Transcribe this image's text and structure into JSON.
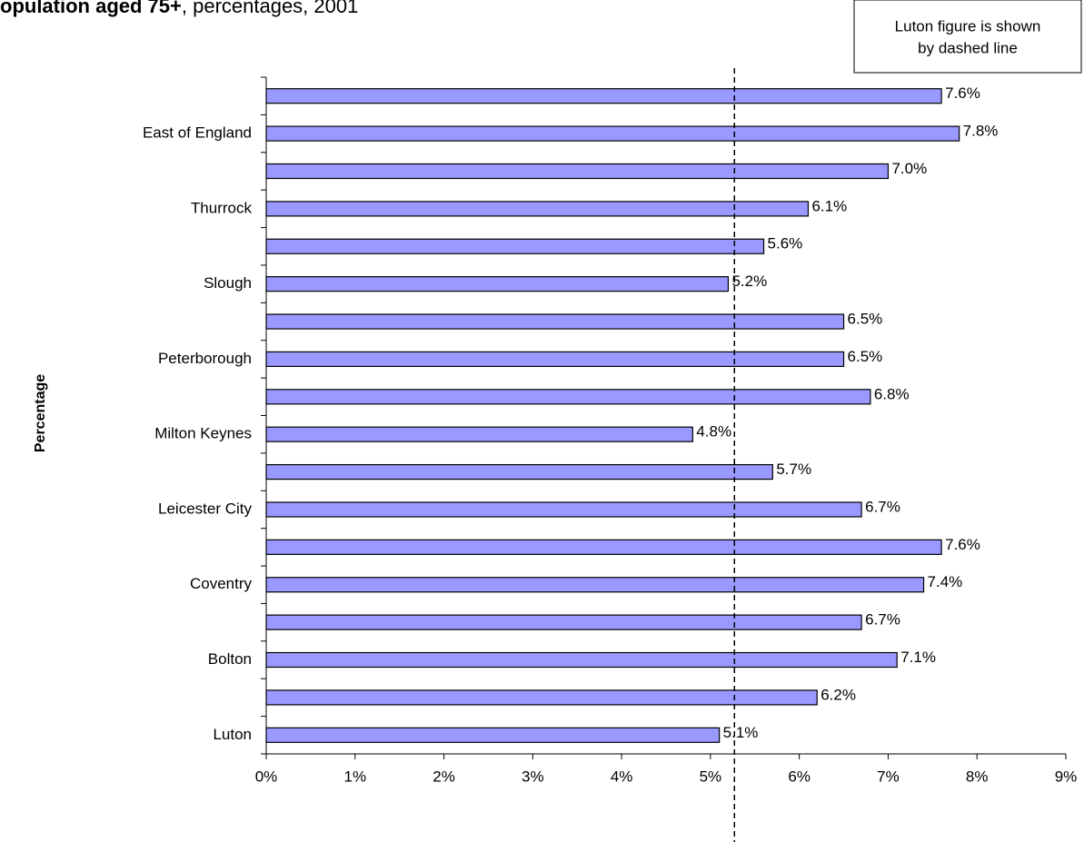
{
  "chart_data": {
    "type": "bar",
    "orientation": "horizontal",
    "title": "opulation aged 75+",
    "subtitle": ", percentages, 2001",
    "y_label": "Percentage",
    "annotation": [
      "Luton figure is shown",
      "by dashed line"
    ],
    "reference_line": 5.27,
    "categories": [
      null,
      "East of England",
      null,
      "Thurrock",
      null,
      "Slough",
      null,
      "Peterborough",
      null,
      "Milton Keynes",
      null,
      "Leicester City",
      null,
      "Coventry",
      null,
      "Bolton",
      null,
      "Luton"
    ],
    "values": [
      7.6,
      7.8,
      7.0,
      6.1,
      5.6,
      5.2,
      6.5,
      6.5,
      6.8,
      4.8,
      5.7,
      6.7,
      7.6,
      7.4,
      6.7,
      7.1,
      6.2,
      5.1
    ],
    "value_labels": [
      "7.6%",
      "7.8%",
      "7.0%",
      "6.1%",
      "5.6%",
      "5.2%",
      "6.5%",
      "6.5%",
      "6.8%",
      "4.8%",
      "5.7%",
      "6.7%",
      "7.6%",
      "7.4%",
      "6.7%",
      "7.1%",
      "6.2%",
      "5.1%"
    ],
    "color": "#9999ff",
    "xlim": [
      0,
      9
    ],
    "xticks": [
      {
        "value": 0,
        "label": "0%"
      },
      {
        "value": 1,
        "label": "1%"
      },
      {
        "value": 2,
        "label": "2%"
      },
      {
        "value": 3,
        "label": "3%"
      },
      {
        "value": 4,
        "label": "4%"
      },
      {
        "value": 5,
        "label": "5%"
      },
      {
        "value": 6,
        "label": "6%"
      },
      {
        "value": 7,
        "label": "7%"
      },
      {
        "value": 8,
        "label": "8%"
      },
      {
        "value": 9,
        "label": "9%"
      }
    ],
    "grid": false
  }
}
